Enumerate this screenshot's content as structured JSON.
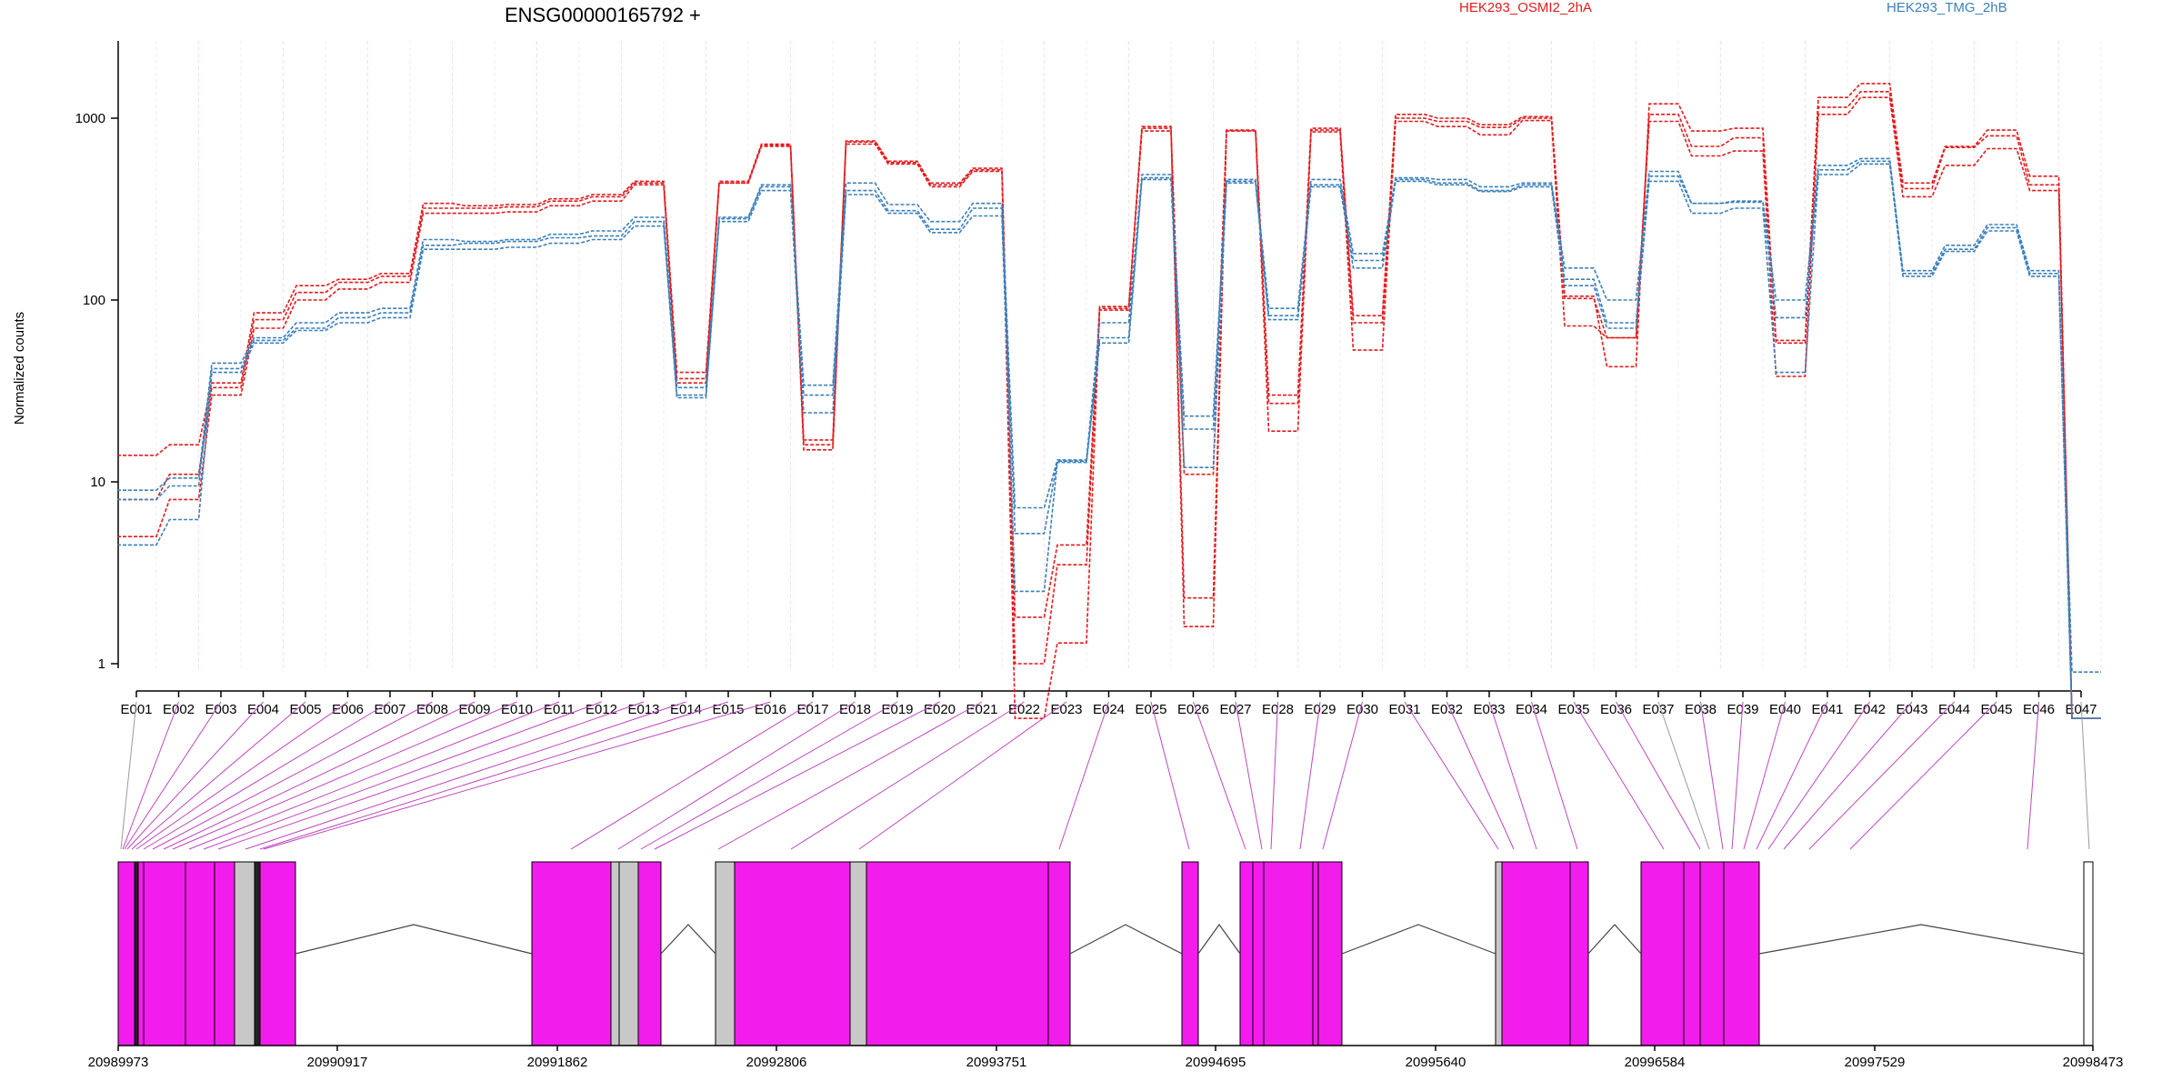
{
  "chart_data": {
    "type": "line",
    "title": "ENSG00000165792 +",
    "ylabel": "Normalized counts",
    "yscale": "log",
    "ylim": [
      0.5,
      2000
    ],
    "yticks": [
      "1",
      "10",
      "100",
      "1000"
    ],
    "grid_vertical": true,
    "categories": [
      "E001",
      "E002",
      "E003",
      "E004",
      "E005",
      "E006",
      "E007",
      "E008",
      "E009",
      "E010",
      "E011",
      "E012",
      "E013",
      "E014",
      "E015",
      "E016",
      "E017",
      "E018",
      "E019",
      "E020",
      "E021",
      "E022",
      "E023",
      "E024",
      "E025",
      "E026",
      "E027",
      "E028",
      "E029",
      "E030",
      "E031",
      "E032",
      "E033",
      "E034",
      "E035",
      "E036",
      "E037",
      "E038",
      "E039",
      "E040",
      "E041",
      "E042",
      "E043",
      "E044",
      "E045",
      "E046",
      "E047"
    ],
    "legend": [
      {
        "label": "HEK293_OSMI2_2hA",
        "color": "#e31a1c"
      },
      {
        "label": "HEK293_TMG_2hB",
        "color": "#3a80ba"
      }
    ],
    "series": [
      {
        "group": 0,
        "values": [
          14,
          16,
          35,
          85,
          120,
          130,
          140,
          340,
          330,
          335,
          360,
          380,
          450,
          40,
          450,
          720,
          17,
          750,
          580,
          440,
          530,
          1.8,
          4.5,
          92,
          900,
          1.6,
          860,
          30,
          880,
          82,
          1050,
          1000,
          920,
          1020,
          105,
          43,
          1200,
          850,
          880,
          60,
          1300,
          1550,
          440,
          700,
          860,
          480,
          0.5
        ]
      },
      {
        "group": 0,
        "values": [
          8,
          11,
          33,
          78,
          110,
          125,
          135,
          320,
          320,
          325,
          350,
          370,
          440,
          37,
          440,
          710,
          16,
          740,
          570,
          430,
          520,
          1.0,
          3.5,
          90,
          880,
          2.3,
          855,
          27,
          860,
          75,
          1000,
          960,
          890,
          1000,
          102,
          62,
          1050,
          700,
          780,
          58,
          1150,
          1400,
          410,
          690,
          800,
          430,
          0.5
        ]
      },
      {
        "group": 0,
        "values": [
          5,
          8,
          30,
          70,
          100,
          115,
          125,
          300,
          300,
          305,
          330,
          350,
          430,
          35,
          440,
          700,
          15,
          720,
          560,
          420,
          510,
          0.5,
          1.3,
          88,
          850,
          11,
          850,
          19,
          840,
          53,
          960,
          900,
          810,
          970,
          72,
          62,
          960,
          620,
          660,
          38,
          1050,
          1300,
          370,
          550,
          680,
          400,
          0.5
        ]
      },
      {
        "group": 1,
        "values": [
          9,
          10.5,
          45,
          62,
          75,
          85,
          90,
          215,
          210,
          215,
          230,
          240,
          285,
          33,
          285,
          430,
          34,
          440,
          335,
          270,
          340,
          7.2,
          13.2,
          75,
          490,
          23,
          460,
          90,
          460,
          180,
          470,
          460,
          420,
          440,
          150,
          100,
          510,
          340,
          350,
          100,
          550,
          600,
          145,
          200,
          260,
          145,
          0.9
        ]
      },
      {
        "group": 1,
        "values": [
          8,
          9.5,
          42,
          60,
          70,
          80,
          85,
          200,
          205,
          210,
          220,
          225,
          270,
          30,
          280,
          420,
          30,
          400,
          310,
          245,
          320,
          5.2,
          13,
          62,
          470,
          19.5,
          450,
          82,
          430,
          165,
          460,
          440,
          400,
          430,
          130,
          75,
          480,
          340,
          345,
          80,
          520,
          580,
          140,
          190,
          250,
          140,
          0.5
        ]
      },
      {
        "group": 1,
        "values": [
          4.5,
          6.2,
          40,
          58,
          68,
          75,
          80,
          190,
          190,
          195,
          205,
          215,
          255,
          29,
          270,
          400,
          24,
          380,
          300,
          235,
          290,
          2.5,
          12.8,
          58,
          460,
          12,
          440,
          78,
          420,
          150,
          450,
          430,
          395,
          420,
          120,
          70,
          450,
          300,
          320,
          40,
          490,
          560,
          135,
          185,
          240,
          135,
          0.5
        ]
      }
    ]
  },
  "gene_model": {
    "coordinates": [
      "20989973",
      "20990917",
      "20991862",
      "20992806",
      "20993751",
      "20994695",
      "20995640",
      "20996584",
      "20997529",
      "20998473"
    ]
  }
}
